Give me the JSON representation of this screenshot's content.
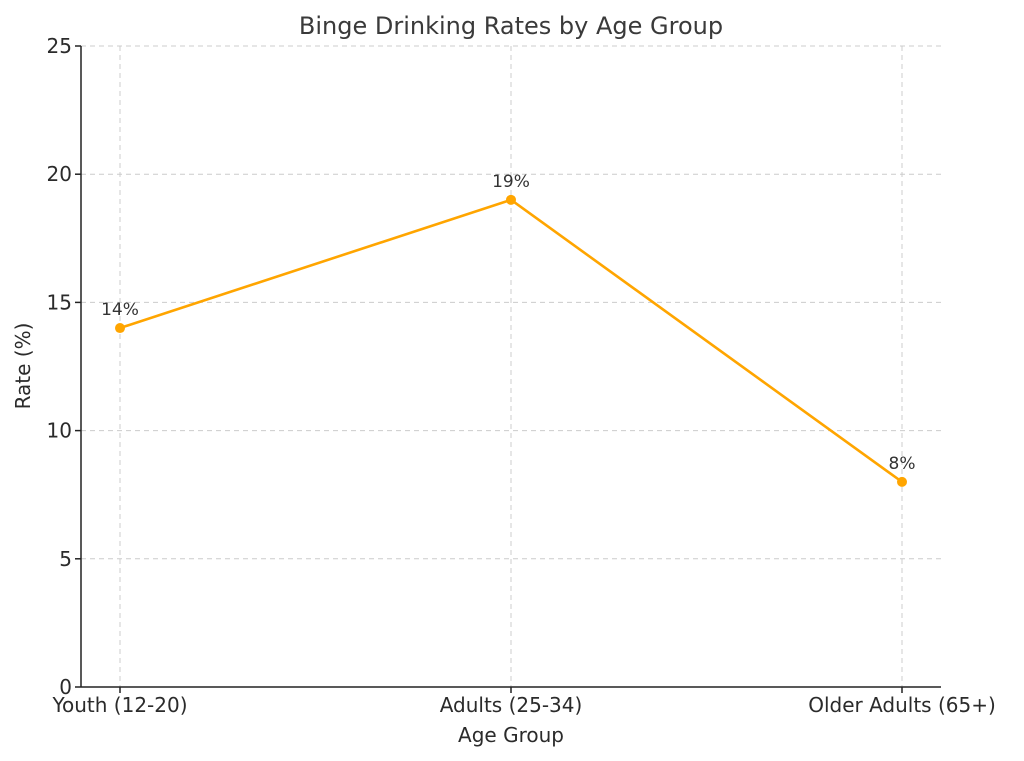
{
  "chart_data": {
    "type": "line",
    "title": "Binge Drinking Rates by Age Group",
    "xlabel": "Age Group",
    "ylabel": "Rate (%)",
    "categories": [
      "Youth (12-20)",
      "Adults (25-34)",
      "Older Adults (65+)"
    ],
    "series": [
      {
        "values": [
          14,
          19,
          8
        ],
        "labels": [
          "14%",
          "19%",
          "8%"
        ],
        "color": "#FFA500"
      }
    ],
    "ylim": [
      0,
      25
    ],
    "yticks": [
      0,
      5,
      10,
      15,
      20,
      25
    ],
    "grid": true,
    "legend": "none"
  }
}
